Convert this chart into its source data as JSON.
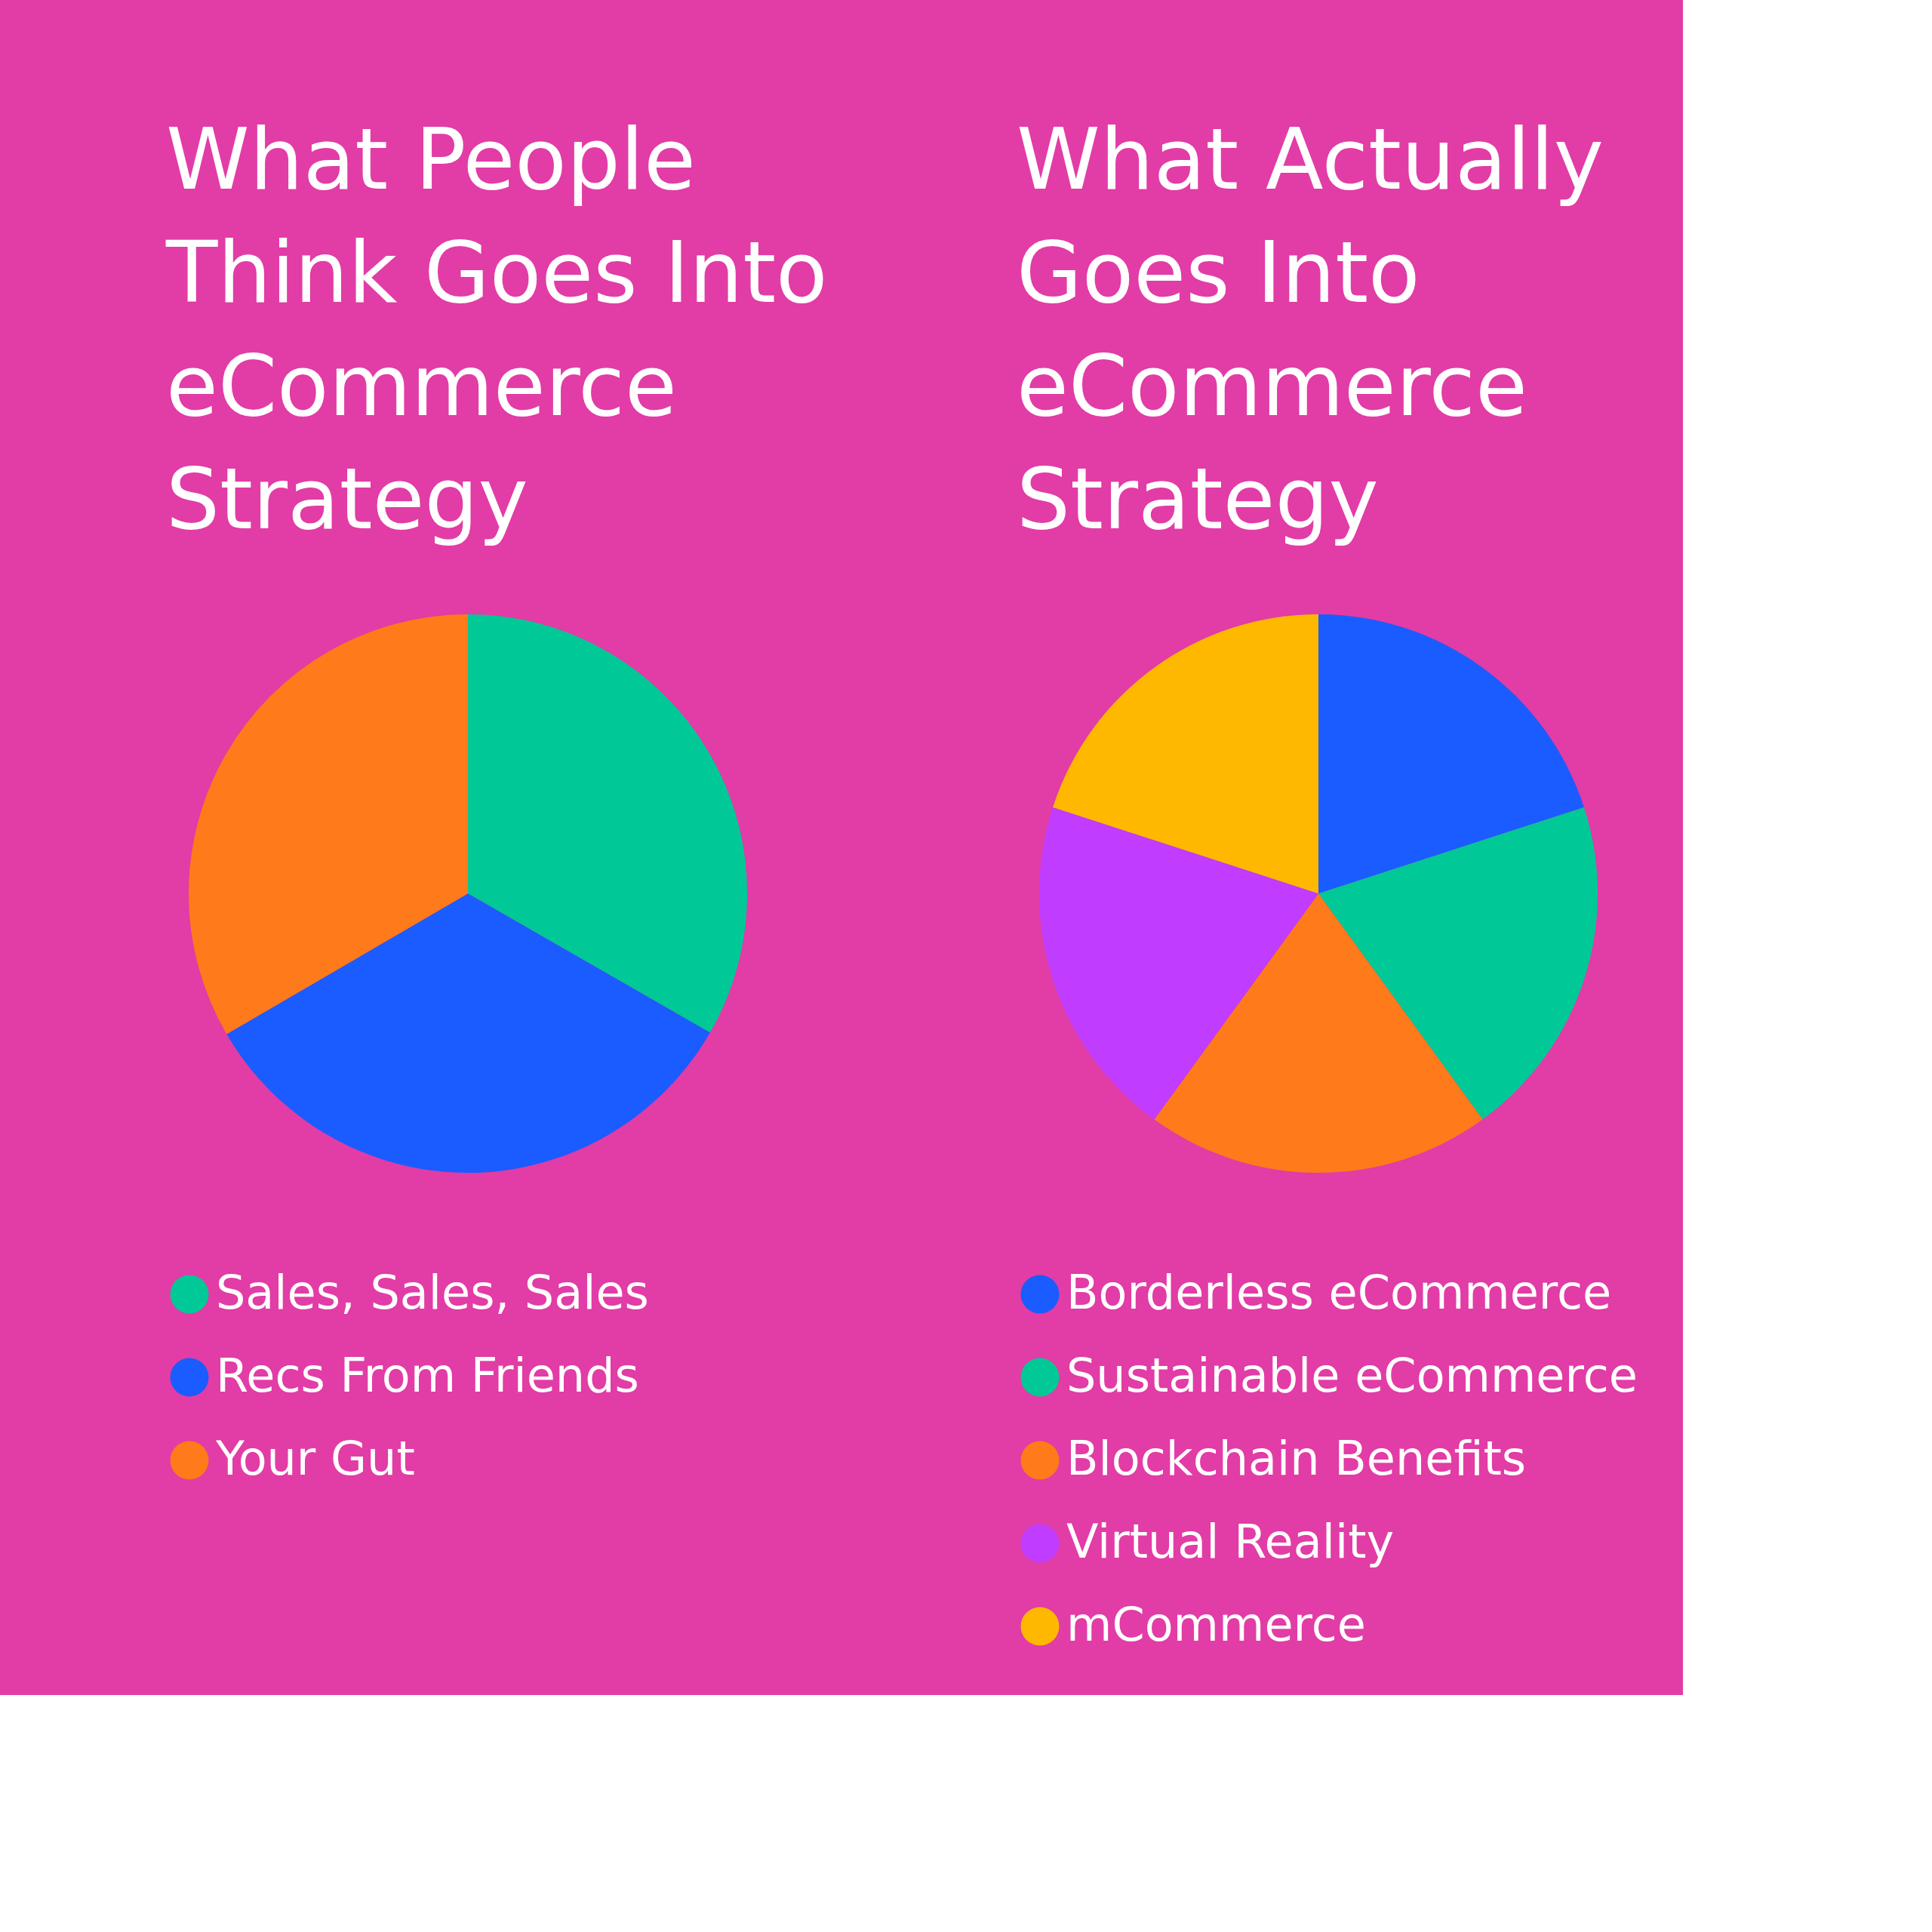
{
  "chart_data": [
    {
      "type": "pie",
      "title": "What People Think Goes Into eCommerce Strategy",
      "categories": [
        "Sales, Sales, Sales",
        "Recs From Friends",
        "Your Gut"
      ],
      "values": [
        33.3,
        33.3,
        33.4
      ],
      "colors": [
        "#00c896",
        "#1a5cff",
        "#ff7a1a"
      ],
      "legend": "bottom"
    },
    {
      "type": "pie",
      "title": "What Actually Goes Into eCommerce Strategy",
      "categories": [
        "Borderless eCommerce",
        "Sustainable eCommerce",
        "Blockchain Benefits",
        "Virtual Reality",
        "mCommerce"
      ],
      "values": [
        20,
        20,
        20,
        20,
        20
      ],
      "colors": [
        "#1a5cff",
        "#00c896",
        "#ff7a1a",
        "#c03cff",
        "#ffb800"
      ],
      "legend": "bottom"
    }
  ]
}
